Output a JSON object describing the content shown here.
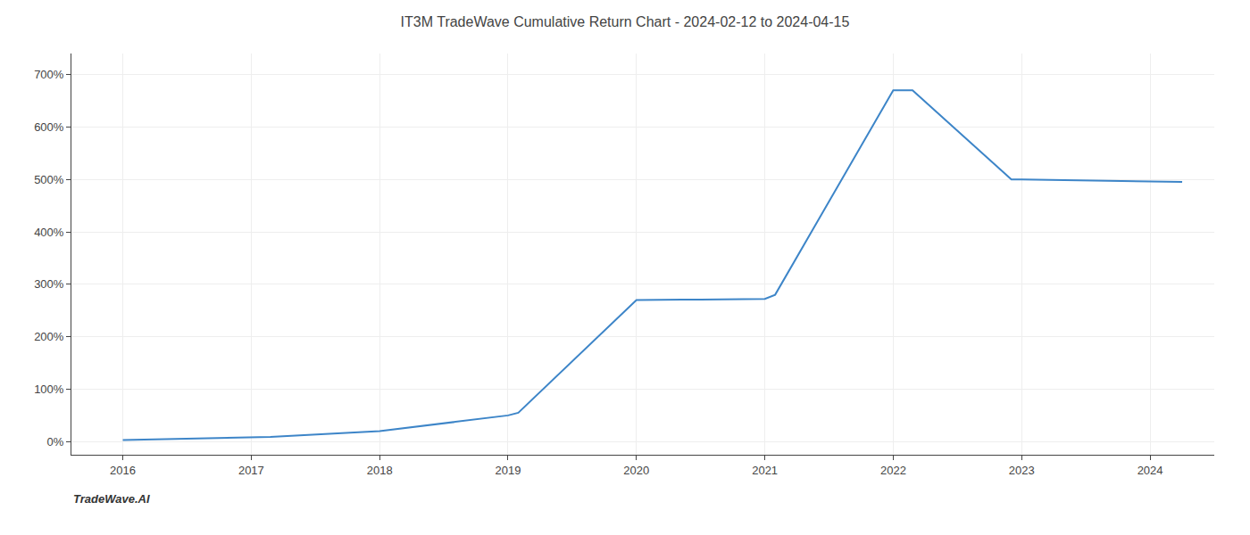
{
  "chart_data": {
    "type": "line",
    "title": "IT3M TradeWave Cumulative Return Chart - 2024-02-12 to 2024-04-15",
    "annotations": [
      "TradeWave.AI"
    ],
    "x": [
      2016,
      2017,
      2017.15,
      2018,
      2019,
      2019.08,
      2020,
      2020.5,
      2021,
      2021.08,
      2022,
      2022.15,
      2022.92,
      2023,
      2023.5,
      2024,
      2024.25
    ],
    "values": [
      3,
      8,
      9,
      20,
      50,
      55,
      270,
      271,
      272,
      280,
      670,
      670,
      500,
      500,
      498,
      495,
      495
    ],
    "color": "#3d85c8",
    "xlim": [
      2015.6,
      2024.5
    ],
    "xticks": [
      2016,
      2017,
      2018,
      2019,
      2020,
      2021,
      2022,
      2023,
      2024
    ],
    "ylim": [
      -25,
      740
    ],
    "yticks": [
      {
        "value": 0,
        "label": "0%"
      },
      {
        "value": 100,
        "label": "100%"
      },
      {
        "value": 200,
        "label": "200%"
      },
      {
        "value": 300,
        "label": "300%"
      },
      {
        "value": 400,
        "label": "400%"
      },
      {
        "value": 500,
        "label": "500%"
      },
      {
        "value": 600,
        "label": "600%"
      },
      {
        "value": 700,
        "label": "700%"
      }
    ],
    "grid": true
  }
}
